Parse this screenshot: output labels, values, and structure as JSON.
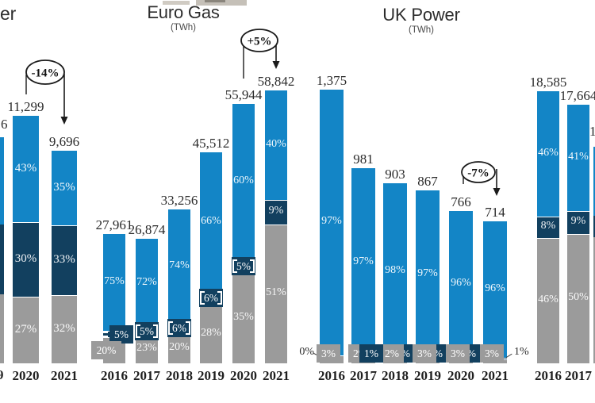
{
  "ui": {
    "colors": {
      "blue": "#1385c6",
      "navy": "#12405f",
      "gray": "#9b9b9b",
      "text": "#2b2b2b",
      "annotation": "#1b1b1b"
    },
    "background": "#ffffff"
  },
  "chart_data": [
    {
      "type": "bar",
      "stacked": true,
      "title": "er",
      "title_note": "title cropped at left edge of screenshot",
      "subtitle": "",
      "categories": [
        "2020",
        "2021"
      ],
      "totals": [
        11299,
        9696
      ],
      "total_labels": [
        "11,299",
        "9,696"
      ],
      "series": [
        {
          "name": "blue",
          "values": [
            43,
            35
          ],
          "labels": [
            "43%",
            "35%"
          ],
          "placements": [
            "inside",
            "inside"
          ]
        },
        {
          "name": "navy",
          "values": [
            30,
            33
          ],
          "labels": [
            "30%",
            "33%"
          ],
          "placements": [
            "inside",
            "inside"
          ]
        },
        {
          "name": "gray",
          "values": [
            27,
            32
          ],
          "labels": [
            "27%",
            "32%"
          ],
          "placements": [
            "inside",
            "inside"
          ]
        }
      ],
      "annotation": {
        "text": "-14%",
        "from": "2020",
        "to": "2021"
      },
      "fragments": {
        "cropped_total_digit": "6",
        "cropped_year_digit": "9"
      }
    },
    {
      "type": "bar",
      "stacked": true,
      "title": "Euro Gas",
      "subtitle": "(TWh)",
      "categories": [
        "2016",
        "2017",
        "2018",
        "2019",
        "2020",
        "2021"
      ],
      "totals": [
        27961,
        26874,
        33256,
        45512,
        55944,
        58842
      ],
      "total_labels": [
        "27,961",
        "26,874",
        "33,256",
        "45,512",
        "55,944",
        "58,842"
      ],
      "series": [
        {
          "name": "blue",
          "values": [
            75,
            72,
            74,
            66,
            60,
            40
          ],
          "labels": [
            "75%",
            "72%",
            "74%",
            "66%",
            "60%",
            "40%"
          ],
          "placements": [
            "inside",
            "inside",
            "inside",
            "inside",
            "inside",
            "inside"
          ]
        },
        {
          "name": "navy",
          "values": [
            5,
            5,
            6,
            6,
            5,
            9
          ],
          "labels": [
            "5%",
            "5%",
            "6%",
            "6%",
            "5%",
            "9%"
          ],
          "placements": [
            "box-right",
            "box",
            "box",
            "box",
            "box",
            "inside"
          ]
        },
        {
          "name": "gray",
          "values": [
            20,
            23,
            20,
            28,
            35,
            51
          ],
          "labels": [
            "20%",
            "23%",
            "20%",
            "28%",
            "35%",
            "51%"
          ],
          "placements": [
            "box-left",
            "inside",
            "inside",
            "inside",
            "inside",
            "inside"
          ]
        }
      ],
      "annotation": {
        "text": "+5%",
        "from": "2020",
        "to": "2021"
      }
    },
    {
      "type": "bar",
      "stacked": true,
      "title": "UK Power",
      "subtitle": "(TWh)",
      "categories": [
        "2016",
        "2017",
        "2018",
        "2019",
        "2020",
        "2021"
      ],
      "totals": [
        1375,
        981,
        903,
        867,
        766,
        714
      ],
      "total_labels": [
        "1,375",
        "981",
        "903",
        "867",
        "766",
        "714"
      ],
      "series": [
        {
          "name": "blue",
          "values": [
            97,
            97,
            98,
            97,
            96,
            96
          ],
          "labels": [
            "97%",
            "97%",
            "98%",
            "97%",
            "96%",
            "96%"
          ],
          "placements": [
            "inside",
            "inside",
            "inside",
            "inside",
            "inside",
            "inside"
          ]
        },
        {
          "name": "navy",
          "values": [
            0,
            1,
            0,
            0,
            0,
            1
          ],
          "labels": [
            "0%",
            "1%",
            "0%",
            "0%",
            "0%",
            "1%"
          ],
          "placements": [
            "outside-left",
            "box-front",
            "box-back",
            "box-back",
            "box-back",
            "outside-right"
          ]
        },
        {
          "name": "gray",
          "values": [
            3,
            2,
            2,
            3,
            3,
            3
          ],
          "labels": [
            "3%",
            "2%",
            "2%",
            "3%",
            "3%",
            "3%"
          ],
          "placements": [
            "box-nudge-left",
            "box-nudge-left",
            "box-nudge-left",
            "box-nudge-left",
            "box-nudge-left",
            "box-nudge-left"
          ]
        }
      ],
      "annotation": {
        "text": "-7%",
        "from": "2020",
        "to": "2021"
      }
    },
    {
      "type": "bar",
      "stacked": true,
      "title": "",
      "title_note": "chart cropped at right edge of screenshot",
      "subtitle": "",
      "categories": [
        "2016",
        "2017"
      ],
      "totals": [
        18585,
        17664
      ],
      "total_labels": [
        "18,585",
        "17,664"
      ],
      "series": [
        {
          "name": "blue",
          "values": [
            46,
            41
          ],
          "labels": [
            "46%",
            "41%"
          ],
          "placements": [
            "inside",
            "inside"
          ]
        },
        {
          "name": "navy",
          "values": [
            8,
            9
          ],
          "labels": [
            "8%",
            "9%"
          ],
          "placements": [
            "inside",
            "inside"
          ]
        },
        {
          "name": "gray",
          "values": [
            46,
            50
          ],
          "labels": [
            "46%",
            "50%"
          ],
          "placements": [
            "inside",
            "inside"
          ]
        }
      ],
      "fragments": {
        "cropped_total_digit": "1"
      }
    }
  ]
}
